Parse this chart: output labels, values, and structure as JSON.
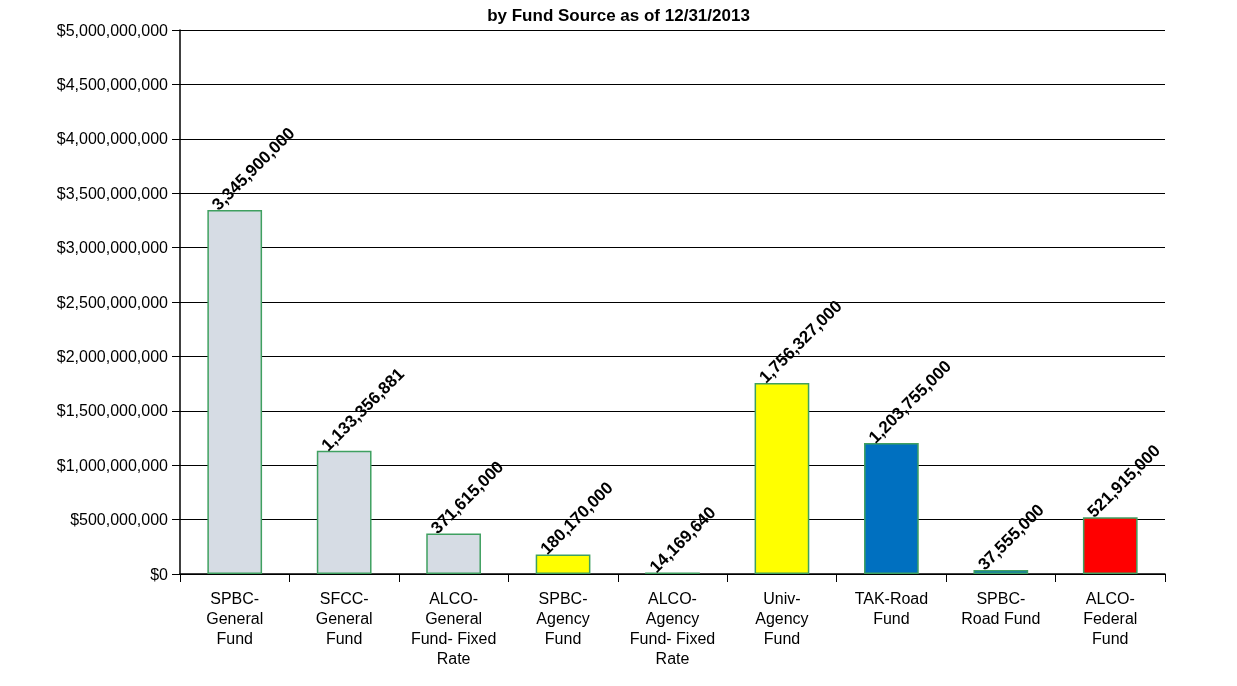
{
  "chart_data": {
    "type": "bar",
    "title": "by Fund Source as of 12/31/2013",
    "categories": [
      "SPBC-General Fund",
      "SFCC-General Fund",
      "ALCO-General Fund- Fixed Rate",
      "SPBC-Agency Fund",
      "ALCO-Agency Fund- Fixed Rate",
      "Univ-Agency Fund",
      "TAK-Road Fund",
      "SPBC-Road Fund",
      "ALCO-Federal Fund"
    ],
    "values": [
      3345900000,
      1133356881,
      371615000,
      180170000,
      14169640,
      1756327000,
      1203755000,
      37555000,
      521915000
    ],
    "colors": [
      "#d6dce4",
      "#d6dce4",
      "#d6dce4",
      "#ffff00",
      "#ffff00",
      "#ffff00",
      "#0070c0",
      "#0070c0",
      "#ff0000"
    ],
    "value_labels": [
      "3,345,900,000",
      "1,133,356,881",
      "371,615,000",
      "180,170,000",
      "14,169,640",
      "1,756,327,000",
      "1,203,755,000",
      "37,555,000",
      "521,915,000"
    ],
    "grid": "y",
    "ylim": [
      0,
      5000000000
    ],
    "yticks": [
      {
        "value": 0,
        "label": "$0"
      },
      {
        "value": 500000000,
        "label": "$500,000,000"
      },
      {
        "value": 1000000000,
        "label": "$1,000,000,000"
      },
      {
        "value": 1500000000,
        "label": "$1,500,000,000"
      },
      {
        "value": 2000000000,
        "label": "$2,000,000,000"
      },
      {
        "value": 2500000000,
        "label": "$2,500,000,000"
      },
      {
        "value": 3000000000,
        "label": "$3,000,000,000"
      },
      {
        "value": 3500000000,
        "label": "$3,500,000,000"
      },
      {
        "value": 4000000000,
        "label": "$4,000,000,000"
      },
      {
        "value": 4500000000,
        "label": "$4,500,000,000"
      },
      {
        "value": 5000000000,
        "label": "$5,000,000,000"
      }
    ]
  }
}
